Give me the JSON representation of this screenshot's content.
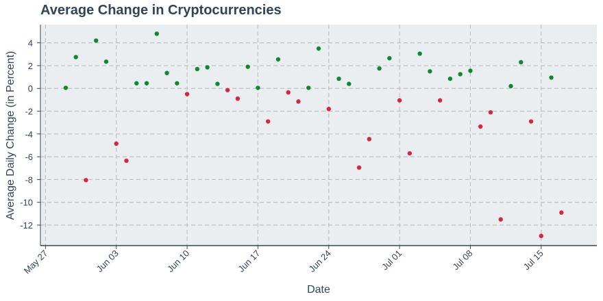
{
  "chart_data": {
    "type": "scatter",
    "title": "Average Change in Cryptocurrencies",
    "xlabel": "Date",
    "ylabel": "Average Daily Change (in Percent)",
    "x_ticks": [
      "May 27",
      "Jun 03",
      "Jun 10",
      "Jun 17",
      "Jun 24",
      "Jul 01",
      "Jul 08",
      "Jul 15"
    ],
    "y_ticks": [
      "4",
      "2",
      "0",
      "-2",
      "-4",
      "-6",
      "-8",
      "-10",
      "-12"
    ],
    "ylim": [
      -13.8,
      5.6
    ],
    "xlim": [
      "2024-05-26T12:00",
      "2024-07-20T12:00"
    ],
    "grid": true,
    "colors": {
      "positive": "#0b8a30",
      "negative": "#d9253f",
      "plot_background": "#eaeef0",
      "grid": "#bcc0c2",
      "axis": "#2f4558"
    },
    "points": [
      {
        "date": "2024-05-29",
        "value": 0.05
      },
      {
        "date": "2024-05-30",
        "value": 2.75
      },
      {
        "date": "2024-05-31",
        "value": -8.05
      },
      {
        "date": "2024-06-01",
        "value": 4.2
      },
      {
        "date": "2024-06-02",
        "value": 2.35
      },
      {
        "date": "2024-06-03",
        "value": -4.85
      },
      {
        "date": "2024-06-04",
        "value": -6.35
      },
      {
        "date": "2024-06-05",
        "value": 0.45
      },
      {
        "date": "2024-06-06",
        "value": 0.45
      },
      {
        "date": "2024-06-07",
        "value": 4.8
      },
      {
        "date": "2024-06-08",
        "value": 1.35
      },
      {
        "date": "2024-06-09",
        "value": 0.45
      },
      {
        "date": "2024-06-10",
        "value": -0.5
      },
      {
        "date": "2024-06-11",
        "value": 1.7
      },
      {
        "date": "2024-06-12",
        "value": 1.85
      },
      {
        "date": "2024-06-13",
        "value": 0.4
      },
      {
        "date": "2024-06-14",
        "value": -0.15
      },
      {
        "date": "2024-06-15",
        "value": -0.9
      },
      {
        "date": "2024-06-16",
        "value": 1.9
      },
      {
        "date": "2024-06-17",
        "value": 0.05
      },
      {
        "date": "2024-06-18",
        "value": -2.9
      },
      {
        "date": "2024-06-19",
        "value": 2.55
      },
      {
        "date": "2024-06-20",
        "value": -0.35
      },
      {
        "date": "2024-06-21",
        "value": -1.15
      },
      {
        "date": "2024-06-22",
        "value": 0.05
      },
      {
        "date": "2024-06-23",
        "value": 3.5
      },
      {
        "date": "2024-06-24",
        "value": -1.8
      },
      {
        "date": "2024-06-25",
        "value": 0.85
      },
      {
        "date": "2024-06-26",
        "value": 0.4
      },
      {
        "date": "2024-06-27",
        "value": -6.95
      },
      {
        "date": "2024-06-28",
        "value": -4.45
      },
      {
        "date": "2024-06-29",
        "value": 1.75
      },
      {
        "date": "2024-06-30",
        "value": 2.65
      },
      {
        "date": "2024-07-01",
        "value": -1.05
      },
      {
        "date": "2024-07-02",
        "value": -5.7
      },
      {
        "date": "2024-07-03",
        "value": 3.05
      },
      {
        "date": "2024-07-04",
        "value": 1.5
      },
      {
        "date": "2024-07-05",
        "value": -1.05
      },
      {
        "date": "2024-07-06",
        "value": 0.85
      },
      {
        "date": "2024-07-07",
        "value": 1.25
      },
      {
        "date": "2024-07-08",
        "value": 1.55
      },
      {
        "date": "2024-07-09",
        "value": -3.35
      },
      {
        "date": "2024-07-10",
        "value": -2.1
      },
      {
        "date": "2024-07-11",
        "value": -11.5
      },
      {
        "date": "2024-07-12",
        "value": 0.2
      },
      {
        "date": "2024-07-13",
        "value": 2.3
      },
      {
        "date": "2024-07-14",
        "value": -2.9
      },
      {
        "date": "2024-07-15",
        "value": -12.95
      },
      {
        "date": "2024-07-16",
        "value": 0.95
      },
      {
        "date": "2024-07-17",
        "value": -10.9
      }
    ]
  }
}
